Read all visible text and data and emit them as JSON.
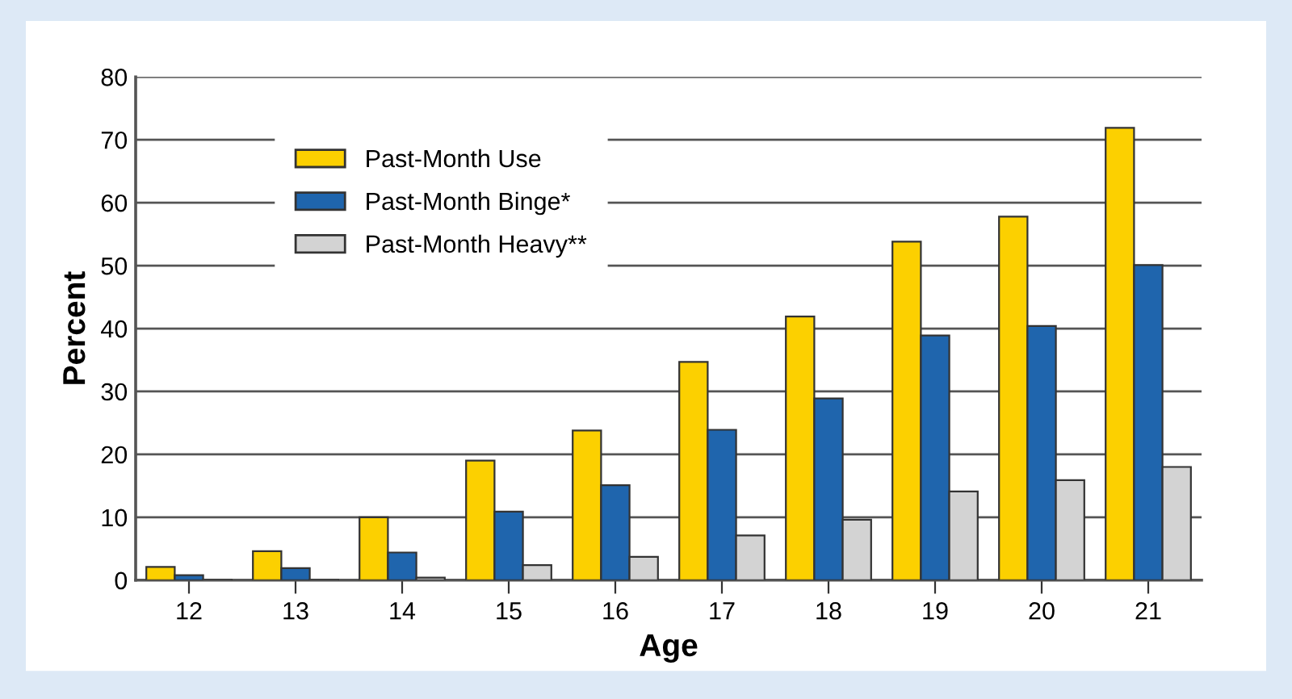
{
  "chart_data": {
    "type": "bar",
    "xlabel": "Age",
    "ylabel": "Percent",
    "categories": [
      "12",
      "13",
      "14",
      "15",
      "16",
      "17",
      "18",
      "19",
      "20",
      "21"
    ],
    "series": [
      {
        "name": "Past-Month Use",
        "color": "#fcd000",
        "values": [
          2.1,
          4.6,
          10,
          19,
          23.8,
          34.7,
          41.9,
          53.8,
          57.8,
          71.9
        ]
      },
      {
        "name": "Past-Month Binge*",
        "color": "#1f65ad",
        "values": [
          0.8,
          1.9,
          4.4,
          10.9,
          15.1,
          23.9,
          28.9,
          38.9,
          40.4,
          50.1
        ]
      },
      {
        "name": "Past-Month Heavy**",
        "color": "#d3d3d3",
        "values": [
          0.1,
          0.1,
          0.4,
          2.4,
          3.7,
          7.1,
          9.6,
          14.1,
          15.9,
          18.0
        ]
      }
    ],
    "ylim": [
      0,
      80
    ],
    "yticks": [
      0,
      10,
      20,
      30,
      40,
      50,
      60,
      70,
      80
    ],
    "grid": "y",
    "legend": "top left"
  }
}
